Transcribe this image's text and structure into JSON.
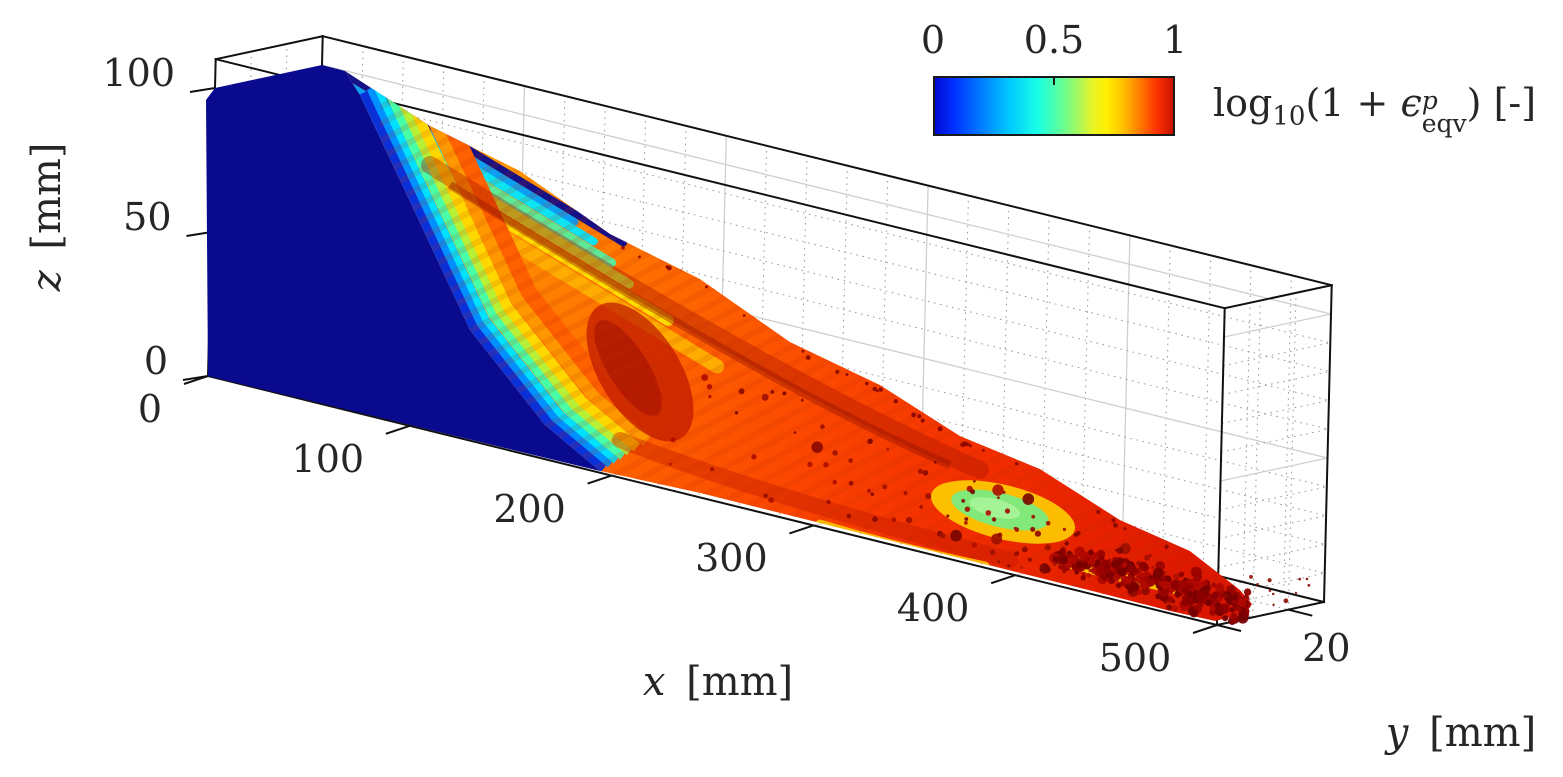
{
  "figure": {
    "title": "",
    "colorbar": {
      "tick_labels": [
        "0",
        "0.5",
        "1"
      ],
      "label": {
        "log": "log",
        "log_sub": "10",
        "open": "(1 + ",
        "epsilon": "ϵ",
        "sup": "p",
        "sub": "eqv",
        "close": ") [-]"
      }
    },
    "axes": {
      "x": {
        "var": "x",
        "unit": "[mm]",
        "ticks": [
          "0",
          "100",
          "200",
          "300",
          "400",
          "500"
        ]
      },
      "y": {
        "var": "y",
        "unit": "[mm]",
        "ticks": [
          "20"
        ]
      },
      "z": {
        "var": "z",
        "unit": "[mm]",
        "ticks": [
          "0",
          "50",
          "100"
        ]
      }
    }
  },
  "chart_data": {
    "type": "scatter",
    "subtype": "3d-point-cloud-of-deformed-workpiece",
    "title": "",
    "xlabel": "x [mm]",
    "ylabel": "y [mm]",
    "zlabel": "z [mm]",
    "x_ticks": [
      0,
      100,
      200,
      300,
      400,
      500
    ],
    "y_ticks": [
      20
    ],
    "z_ticks": [
      0,
      50,
      100
    ],
    "x_range": [
      0,
      500
    ],
    "y_range": [
      0,
      30
    ],
    "z_range": [
      0,
      110
    ],
    "grid": true,
    "view": "3d perspective box, camera front-left-above",
    "colorbar": {
      "label": "log10(1 + eps_eqv^p) [-]",
      "orientation": "horizontal",
      "position": "top-right",
      "range": [
        0,
        1
      ],
      "ticks": [
        0,
        0.5,
        1
      ],
      "colormap": "jet",
      "colors": [
        "#000cd0 0%",
        "#0030ff 8%",
        "#0080ff 20%",
        "#00c8ff 31%",
        "#18ffe8 43%",
        "#58ffa0 52%",
        "#a4f860 60%",
        "#e6f428 66%",
        "#fff000 72%",
        "#ffc000 79%",
        "#ff7c00 86%",
        "#ff3400 93%",
        "#c81200 100%"
      ]
    },
    "regions": [
      {
        "name": "undeformed-workpiece-front-face",
        "extent_x_mm": [
          0,
          200
        ],
        "approx_value": 0.0,
        "color": "#0a0a8f"
      },
      {
        "name": "machined-top-surface-transition-stripes",
        "extent_x_mm": [
          10,
          160
        ],
        "approx_value": "0.2 - 0.6",
        "colors": [
          "cyan",
          "green",
          "yellow"
        ]
      },
      {
        "name": "primary-shear-band-rainbow",
        "extent_x_mm": [
          170,
          210
        ],
        "approx_value": "0.1 - 0.7"
      },
      {
        "name": "chip-sloped-surface",
        "extent_x_mm": [
          60,
          480
        ],
        "approx_value": "0.7 - 0.9",
        "color": "orange-red with dark ripples"
      },
      {
        "name": "low-strain-island",
        "extent_x_mm": [
          370,
          410
        ],
        "approx_value": "0.45",
        "color": "green-yellow"
      },
      {
        "name": "fragmented-chip-end",
        "extent_x_mm": [
          400,
          510
        ],
        "approx_value": "> 1",
        "color": "dark red speckles"
      }
    ]
  }
}
